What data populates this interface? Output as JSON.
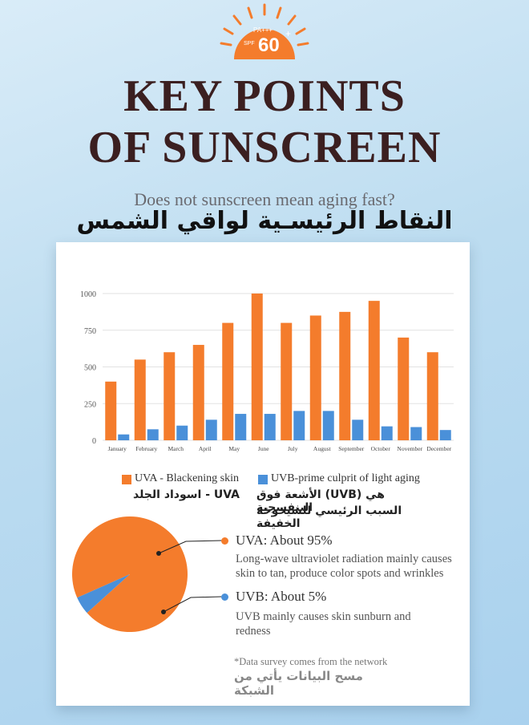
{
  "badge": {
    "spf_text": "SPF",
    "pa_text": "PA+++",
    "number": "60",
    "plus": "+"
  },
  "title_line1": "KEY POINTS",
  "title_line2": "OF SUNSCREEN",
  "subtitle": "Does not sunscreen mean aging fast?",
  "arabic_title": "النقاط الرئيسـية لواقي الشمس",
  "legend": {
    "uva_label": "UVA - Blackening skin",
    "uva_arabic": "UVA - اسوداد الجلد",
    "uvb_label": "UVB-prime culprit of light aging",
    "uvb_arabic_1": "هي (UVB) الأشعة فوق البنفسجية",
    "uvb_arabic_2": "السبب الرئيسي للشيخوخة الخفيفة"
  },
  "pie": {
    "uva_title": "UVA:  About 95%",
    "uva_desc_1": "Long-wave ultraviolet radiation mainly causes",
    "uva_desc_2": "skin to tan, produce color spots and wrinkles",
    "uvb_title": "UVB: About 5%",
    "uvb_desc_1": "UVB mainly causes skin sunburn and",
    "uvb_desc_2": "redness"
  },
  "note": "*Data survey comes from the network",
  "note_arabic": "مسح البيانات يأتي من الشبكة",
  "colors": {
    "orange": "#f47c2c",
    "blue": "#4a90d9",
    "title": "#3b1f20"
  },
  "chart_data": [
    {
      "type": "bar",
      "categories": [
        "January",
        "February",
        "March",
        "April",
        "May",
        "June",
        "July",
        "August",
        "September",
        "October",
        "November",
        "December"
      ],
      "series": [
        {
          "name": "UVA - Blackening skin",
          "values": [
            400,
            550,
            600,
            650,
            800,
            1000,
            800,
            850,
            875,
            950,
            700,
            600
          ]
        },
        {
          "name": "UVB-prime culprit of light aging",
          "values": [
            40,
            75,
            100,
            140,
            180,
            180,
            200,
            200,
            140,
            95,
            90,
            70
          ]
        }
      ],
      "yticks": [
        0,
        250,
        500,
        750,
        1000
      ],
      "ylim": [
        0,
        1000
      ],
      "grid": true
    },
    {
      "type": "pie",
      "labels": [
        "UVA",
        "UVB"
      ],
      "values": [
        95,
        5
      ]
    }
  ]
}
